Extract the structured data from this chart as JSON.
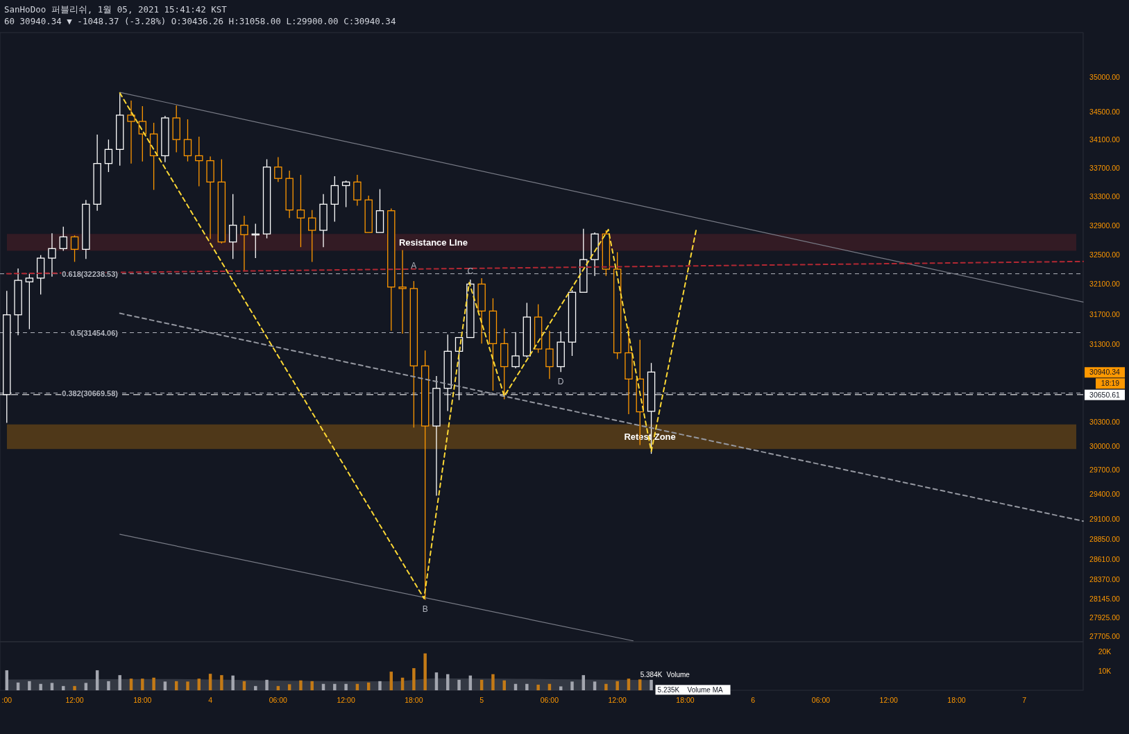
{
  "chart_data": [
    {
      "type": "candlestick",
      "title": "SanHoDoo 퍼블리쉬, 1월 05, 2021 15:41:42 KST",
      "subtitle": "60 30940.34 ▼ -1048.37 (-3.28%) O:30436.26 H:31058.00 L:29900.00 C:30940.34",
      "x": [
        "2021-01-03T06:00",
        "2021-01-03T07:00",
        "2021-01-03T08:00",
        "2021-01-03T09:00",
        "2021-01-03T10:00",
        "2021-01-03T11:00",
        "2021-01-03T12:00",
        "2021-01-03T13:00",
        "2021-01-03T14:00",
        "2021-01-03T15:00",
        "2021-01-03T16:00",
        "2021-01-03T17:00",
        "2021-01-03T18:00",
        "2021-01-03T19:00",
        "2021-01-03T20:00",
        "2021-01-03T21:00",
        "2021-01-03T22:00",
        "2021-01-03T23:00",
        "2021-01-04T00:00",
        "2021-01-04T01:00",
        "2021-01-04T02:00",
        "2021-01-04T03:00",
        "2021-01-04T04:00",
        "2021-01-04T05:00",
        "2021-01-04T06:00",
        "2021-01-04T07:00",
        "2021-01-04T08:00",
        "2021-01-04T09:00",
        "2021-01-04T10:00",
        "2021-01-04T11:00",
        "2021-01-04T12:00",
        "2021-01-04T13:00",
        "2021-01-04T14:00",
        "2021-01-04T15:00",
        "2021-01-04T16:00",
        "2021-01-04T17:00",
        "2021-01-04T18:00",
        "2021-01-04T19:00",
        "2021-01-04T20:00",
        "2021-01-04T21:00",
        "2021-01-04T22:00",
        "2021-01-04T23:00",
        "2021-01-05T00:00",
        "2021-01-05T01:00",
        "2021-01-05T02:00",
        "2021-01-05T03:00",
        "2021-01-05T04:00",
        "2021-01-05T05:00",
        "2021-01-05T06:00",
        "2021-01-05T07:00",
        "2021-01-05T08:00",
        "2021-01-05T09:00",
        "2021-01-05T10:00",
        "2021-01-05T11:00",
        "2021-01-05T12:00",
        "2021-01-05T13:00",
        "2021-01-05T14:00",
        "2021-01-05T15:00"
      ],
      "ohlc": [
        [
          30650,
          32010,
          30290,
          31690
        ],
        [
          31690,
          32310,
          31420,
          32150
        ],
        [
          32130,
          32240,
          31500,
          32180
        ],
        [
          32180,
          32490,
          31960,
          32450
        ],
        [
          32450,
          32790,
          32200,
          32580
        ],
        [
          32580,
          32880,
          32550,
          32740
        ],
        [
          32740,
          32760,
          32400,
          32570
        ],
        [
          32570,
          33250,
          32440,
          33190
        ],
        [
          33190,
          34170,
          33100,
          33760
        ],
        [
          33760,
          34100,
          33640,
          33960
        ],
        [
          33960,
          34770,
          33730,
          34450
        ],
        [
          34450,
          34660,
          33760,
          34360
        ],
        [
          34360,
          34580,
          33790,
          34180
        ],
        [
          34180,
          34340,
          33390,
          33870
        ],
        [
          33870,
          34440,
          33780,
          34410
        ],
        [
          34410,
          34590,
          33920,
          34100
        ],
        [
          34100,
          34390,
          33790,
          33870
        ],
        [
          33870,
          34140,
          33440,
          33800
        ],
        [
          33800,
          33860,
          32710,
          33500
        ],
        [
          33500,
          33820,
          32650,
          32670
        ],
        [
          32670,
          33330,
          32440,
          32900
        ],
        [
          32900,
          33030,
          32270,
          32770
        ],
        [
          32770,
          32920,
          32450,
          32780
        ],
        [
          32780,
          33820,
          32720,
          33710
        ],
        [
          33710,
          33850,
          33500,
          33550
        ],
        [
          33550,
          33660,
          33000,
          33110
        ],
        [
          33110,
          33600,
          32600,
          33000
        ],
        [
          33000,
          33110,
          32400,
          32830
        ],
        [
          32830,
          33330,
          32600,
          33190
        ],
        [
          33190,
          33580,
          32950,
          33450
        ],
        [
          33450,
          33520,
          33150,
          33500
        ],
        [
          33500,
          33600,
          33170,
          33250
        ],
        [
          33250,
          33310,
          32800,
          32800
        ],
        [
          32800,
          33400,
          32800,
          33100
        ],
        [
          33100,
          33130,
          31480,
          32060
        ],
        [
          32060,
          32560,
          31440,
          32040
        ],
        [
          32040,
          32140,
          30230,
          31020
        ],
        [
          31020,
          31220,
          28130,
          30250
        ],
        [
          30250,
          30890,
          29380,
          30730
        ],
        [
          30730,
          31430,
          30440,
          31210
        ],
        [
          31210,
          31390,
          30580,
          31390
        ],
        [
          31390,
          32160,
          31390,
          32100
        ],
        [
          32100,
          32180,
          31310,
          31740
        ],
        [
          31740,
          31910,
          30700,
          31310
        ],
        [
          31310,
          31510,
          30590,
          31010
        ],
        [
          31010,
          31460,
          30990,
          31150
        ],
        [
          31150,
          31850,
          31130,
          31660
        ],
        [
          31660,
          31830,
          31190,
          31240
        ],
        [
          31240,
          31480,
          30850,
          31010
        ],
        [
          31010,
          31470,
          30940,
          31330
        ],
        [
          31330,
          32020,
          31150,
          31990
        ],
        [
          31990,
          32850,
          31990,
          32430
        ],
        [
          32430,
          32800,
          32210,
          32780
        ],
        [
          32780,
          32830,
          32210,
          32300
        ],
        [
          32300,
          32530,
          31110,
          31190
        ],
        [
          31190,
          31530,
          30400,
          30850
        ],
        [
          30850,
          31360,
          30010,
          30430
        ],
        [
          30436.26,
          31058.0,
          29900.0,
          30940.34
        ]
      ],
      "colors": [
        "#ffffff",
        "#ffffff",
        "#ffffff",
        "#ffffff",
        "#ffffff",
        "#ffffff",
        "#ff9800",
        "#ffffff",
        "#ffffff",
        "#ffffff",
        "#ffffff",
        "#ff9800",
        "#ff9800",
        "#ff9800",
        "#ffffff",
        "#ff9800",
        "#ff9800",
        "#ff9800",
        "#ff9800",
        "#ff9800",
        "#ffffff",
        "#ff9800",
        "#ffffff",
        "#ffffff",
        "#ff9800",
        "#ff9800",
        "#ff9800",
        "#ff9800",
        "#ffffff",
        "#ffffff",
        "#ffffff",
        "#ff9800",
        "#ff9800",
        "#ffffff",
        "#ff9800",
        "#ff9800",
        "#ff9800",
        "#ff9800",
        "#ffffff",
        "#ffffff",
        "#ffffff",
        "#ffffff",
        "#ff9800",
        "#ff9800",
        "#ff9800",
        "#ffffff",
        "#ffffff",
        "#ff9800",
        "#ff9800",
        "#ffffff",
        "#ffffff",
        "#ffffff",
        "#ffffff",
        "#ff9800",
        "#ff9800",
        "#ff9800",
        "#ff9800",
        "#ffffff"
      ],
      "series": [
        {
          "type": "line",
          "x": [
            "2021-01-03T16:00",
            "2021-01-07T05:12"
          ],
          "values": [
            34780,
            31860
          ],
          "color": "#787b86",
          "line_style": "solid"
        },
        {
          "type": "line",
          "x": [
            "2021-01-03T16:00",
            "2021-01-07T05:12"
          ],
          "values": [
            31710,
            29070
          ],
          "color": "#9598a1",
          "line_style": "dashed"
        },
        {
          "type": "line",
          "x": [
            "2021-01-03T16:00",
            "2021-01-05T13:24"
          ],
          "values": [
            28910,
            27650
          ],
          "color": "#787b86",
          "line_style": "solid"
        },
        {
          "type": "line",
          "x": [
            "2021-01-03T16:00",
            "2021-01-04T18:54",
            "2021-01-04T22:54",
            "2021-01-05T02:00",
            "2021-01-05T11:12",
            "2021-01-05T15:00",
            "2021-01-05T19:00"
          ],
          "values": [
            34770,
            28145,
            32120,
            30630,
            32840,
            29930,
            32860
          ],
          "color": "#fdd835",
          "line_style": "dashed"
        },
        {
          "type": "line",
          "x": [
            "2021-01-03T06:00",
            "2021-01-07T05:12"
          ],
          "values": [
            32240,
            32405
          ],
          "color": "#b22833",
          "line_style": "dashed"
        }
      ],
      "xlim": [
        "2021-01-03T05:24",
        "2021-01-07T05:12"
      ],
      "ylim": [
        27640,
        35660
      ],
      "yticks": [
        {
          "value": 35000,
          "label": "35000.00"
        },
        {
          "value": 34500,
          "label": "34500.00"
        },
        {
          "value": 34100,
          "label": "34100.00"
        },
        {
          "value": 33700,
          "label": "33700.00"
        },
        {
          "value": 33300,
          "label": "33300.00"
        },
        {
          "value": 32900,
          "label": "32900.00"
        },
        {
          "value": 32500,
          "label": "32500.00"
        },
        {
          "value": 32100,
          "label": "32100.00"
        },
        {
          "value": 31700,
          "label": "31700.00"
        },
        {
          "value": 31300,
          "label": "31300.00"
        },
        {
          "value": 30300,
          "label": "30300.00"
        },
        {
          "value": 30000,
          "label": "30000.00"
        },
        {
          "value": 29700,
          "label": "29700.00"
        },
        {
          "value": 29400,
          "label": "29400.00"
        },
        {
          "value": 29100,
          "label": "29100.00"
        },
        {
          "value": 28850,
          "label": "28850.00"
        },
        {
          "value": 28610,
          "label": "28610.00"
        },
        {
          "value": 28370,
          "label": "28370.00"
        },
        {
          "value": 28145,
          "label": "28145.00"
        },
        {
          "value": 27925,
          "label": "27925.00"
        },
        {
          "value": 27705,
          "label": "27705.00"
        }
      ],
      "log": true,
      "tick_labels": "y",
      "ref_lines": [
        {
          "axis": "y",
          "value": 32238.53,
          "label": "0.618(32238.53)",
          "color": "#b2b5be",
          "line_style": "dashed"
        },
        {
          "axis": "y",
          "value": 31454.06,
          "label": "0.5(31454.06)",
          "color": "#b2b5be",
          "line_style": "dashed"
        },
        {
          "axis": "y",
          "value": 30669.58,
          "label": "0.382(30669.58)",
          "color": "#b2b5be",
          "line_style": "dashed"
        },
        {
          "axis": "y",
          "value": 30650.61,
          "label": "30650.61",
          "color": "#ffffff",
          "line_style": "dashed"
        }
      ],
      "bands": [
        {
          "axis": "y",
          "from": 32550,
          "to": 32780,
          "label": "Resistance LIne",
          "color": "#3a1c24"
        },
        {
          "axis": "y",
          "from": 29960,
          "to": 30270,
          "label": "Retest Zone",
          "color": "#5b3e17"
        }
      ],
      "annotations": [
        {
          "text": "A",
          "x": "2021-01-04T18:00",
          "y": 32238.53
        },
        {
          "text": "B",
          "x": "2021-01-04T19:00",
          "y": 28130
        },
        {
          "text": "C",
          "x": "2021-01-04T23:00",
          "y": 32160
        },
        {
          "text": "D",
          "x": "2021-01-05T07:00",
          "y": 30940
        },
        "30940.34",
        "18:19"
      ]
    },
    {
      "type": "bar",
      "x": [
        "2021-01-03T06:00",
        "2021-01-03T07:00",
        "2021-01-03T08:00",
        "2021-01-03T09:00",
        "2021-01-03T10:00",
        "2021-01-03T11:00",
        "2021-01-03T12:00",
        "2021-01-03T13:00",
        "2021-01-03T14:00",
        "2021-01-03T15:00",
        "2021-01-03T16:00",
        "2021-01-03T17:00",
        "2021-01-03T18:00",
        "2021-01-03T19:00",
        "2021-01-03T20:00",
        "2021-01-03T21:00",
        "2021-01-03T22:00",
        "2021-01-03T23:00",
        "2021-01-04T00:00",
        "2021-01-04T01:00",
        "2021-01-04T02:00",
        "2021-01-04T03:00",
        "2021-01-04T04:00",
        "2021-01-04T05:00",
        "2021-01-04T06:00",
        "2021-01-04T07:00",
        "2021-01-04T08:00",
        "2021-01-04T09:00",
        "2021-01-04T10:00",
        "2021-01-04T11:00",
        "2021-01-04T12:00",
        "2021-01-04T13:00",
        "2021-01-04T14:00",
        "2021-01-04T15:00",
        "2021-01-04T16:00",
        "2021-01-04T17:00",
        "2021-01-04T18:00",
        "2021-01-04T19:00",
        "2021-01-04T20:00",
        "2021-01-04T21:00",
        "2021-01-04T22:00",
        "2021-01-04T23:00",
        "2021-01-05T00:00",
        "2021-01-05T01:00",
        "2021-01-05T02:00",
        "2021-01-05T03:00",
        "2021-01-05T04:00",
        "2021-01-05T05:00",
        "2021-01-05T06:00",
        "2021-01-05T07:00",
        "2021-01-05T08:00",
        "2021-01-05T09:00",
        "2021-01-05T10:00",
        "2021-01-05T11:00",
        "2021-01-05T12:00",
        "2021-01-05T13:00",
        "2021-01-05T14:00",
        "2021-01-05T15:00"
      ],
      "series": [
        {
          "name": "Volume",
          "type": "bar",
          "values": [
            10.3,
            4.0,
            4.7,
            3.3,
            3.8,
            2.2,
            2.2,
            3.8,
            10.3,
            4.7,
            7.8,
            6.0,
            6.0,
            6.5,
            4.5,
            4.7,
            4.5,
            6.0,
            8.5,
            7.8,
            7.6,
            4.7,
            2.2,
            5.4,
            2.2,
            3.1,
            5.1,
            4.7,
            3.3,
            3.3,
            3.3,
            3.3,
            4.0,
            4.7,
            9.6,
            6.5,
            11.4,
            19.0,
            9.2,
            8.3,
            5.4,
            7.6,
            5.4,
            8.3,
            5.1,
            3.3,
            3.3,
            2.9,
            3.3,
            2.0,
            4.5,
            7.8,
            4.5,
            3.3,
            4.7,
            6.0,
            5.6,
            5.384
          ],
          "colors": [
            "#a3a6af",
            "#a3a6af",
            "#a3a6af",
            "#a3a6af",
            "#a3a6af",
            "#a3a6af",
            "#c47a16",
            "#a3a6af",
            "#a3a6af",
            "#a3a6af",
            "#a3a6af",
            "#c47a16",
            "#c47a16",
            "#c47a16",
            "#a3a6af",
            "#c47a16",
            "#c47a16",
            "#c47a16",
            "#c47a16",
            "#c47a16",
            "#a3a6af",
            "#c47a16",
            "#a3a6af",
            "#a3a6af",
            "#c47a16",
            "#c47a16",
            "#c47a16",
            "#c47a16",
            "#a3a6af",
            "#a3a6af",
            "#a3a6af",
            "#c47a16",
            "#c47a16",
            "#a3a6af",
            "#c47a16",
            "#c47a16",
            "#c47a16",
            "#c47a16",
            "#a3a6af",
            "#a3a6af",
            "#a3a6af",
            "#a3a6af",
            "#c47a16",
            "#c47a16",
            "#c47a16",
            "#a3a6af",
            "#a3a6af",
            "#c47a16",
            "#c47a16",
            "#a3a6af",
            "#a3a6af",
            "#a3a6af",
            "#a3a6af",
            "#c47a16",
            "#c47a16",
            "#c47a16",
            "#c47a16",
            "#a3a6af"
          ],
          "value_labels": [
            null,
            null,
            null,
            null,
            null,
            null,
            null,
            null,
            null,
            null,
            null,
            null,
            null,
            null,
            null,
            null,
            null,
            null,
            null,
            null,
            null,
            null,
            null,
            null,
            null,
            null,
            null,
            null,
            null,
            null,
            null,
            null,
            null,
            null,
            null,
            null,
            null,
            null,
            null,
            null,
            null,
            null,
            null,
            null,
            null,
            null,
            null,
            null,
            null,
            null,
            null,
            null,
            null,
            null,
            null,
            null,
            null,
            "5.384K"
          ]
        },
        {
          "name": "Volume MA",
          "type": "area",
          "x": [
            "2021-01-03T06:00",
            "2021-01-03T20:00",
            "2021-01-04T06:00",
            "2021-01-04T16:00",
            "2021-01-04T20:00",
            "2021-01-05T02:00",
            "2021-01-05T08:00",
            "2021-01-05T15:00"
          ],
          "values": [
            5.5,
            5.8,
            5.0,
            4.6,
            6.2,
            6.0,
            5.6,
            5.235
          ],
          "color": "#4a4e5a",
          "value_labels": [
            null,
            null,
            null,
            null,
            null,
            null,
            null,
            "5.235K"
          ]
        }
      ],
      "xlim": [
        "2021-01-03T05:24",
        "2021-01-07T05:12"
      ],
      "xticks": [
        {
          "value": "2021-01-03T06:00",
          "label": ":00"
        },
        {
          "value": "2021-01-03T12:00",
          "label": "12:00"
        },
        {
          "value": "2021-01-03T18:00",
          "label": "18:00"
        },
        {
          "value": "2021-01-04T00:00",
          "label": "4"
        },
        {
          "value": "2021-01-04T06:00",
          "label": "06:00"
        },
        {
          "value": "2021-01-04T12:00",
          "label": "12:00"
        },
        {
          "value": "2021-01-04T18:00",
          "label": "18:00"
        },
        {
          "value": "2021-01-05T00:00",
          "label": "5"
        },
        {
          "value": "2021-01-05T06:00",
          "label": "06:00"
        },
        {
          "value": "2021-01-05T12:00",
          "label": "12:00"
        },
        {
          "value": "2021-01-05T18:00",
          "label": "18:00"
        },
        {
          "value": "2021-01-06T00:00",
          "label": "6"
        },
        {
          "value": "2021-01-06T06:00",
          "label": "06:00"
        },
        {
          "value": "2021-01-06T12:00",
          "label": "12:00"
        },
        {
          "value": "2021-01-06T18:00",
          "label": "18:00"
        },
        {
          "value": "2021-01-07T00:00",
          "label": "7"
        }
      ],
      "ylim": [
        0,
        25
      ],
      "yticks": [
        {
          "value": 10,
          "label": "10K"
        },
        {
          "value": 20,
          "label": "20K"
        }
      ]
    }
  ]
}
